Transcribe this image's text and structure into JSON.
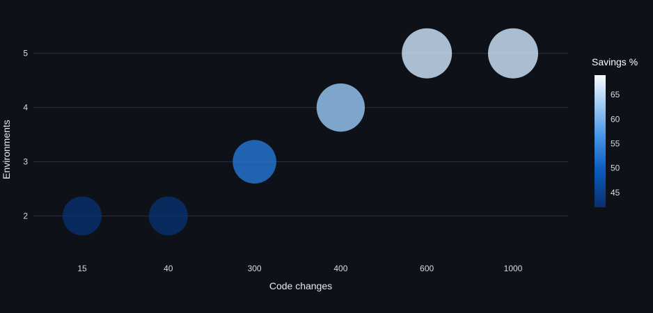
{
  "chart_data": {
    "type": "scatter",
    "x_categories": [
      "15",
      "40",
      "300",
      "400",
      "600",
      "1000"
    ],
    "xlabel": "Code changes",
    "ylabel": "Environments",
    "y_ticks": [
      2,
      3,
      4,
      5
    ],
    "ylim": [
      1.3,
      5.6
    ],
    "points": [
      {
        "x": "15",
        "y": 2,
        "savings": 42
      },
      {
        "x": "40",
        "y": 2,
        "savings": 42
      },
      {
        "x": "300",
        "y": 3,
        "savings": 52
      },
      {
        "x": "400",
        "y": 4,
        "savings": 62
      },
      {
        "x": "600",
        "y": 5,
        "savings": 66
      },
      {
        "x": "1000",
        "y": 5,
        "savings": 66
      }
    ],
    "size_scale": "bubble size tracks savings",
    "colorbar": {
      "title": "Savings %",
      "ticks": [
        45,
        50,
        55,
        60,
        65
      ],
      "range": [
        42,
        69
      ],
      "colorscale": [
        "#08306b",
        "#0b5bbf",
        "#4292e6",
        "#9ac8f4",
        "#f7fbff"
      ]
    },
    "grid": true,
    "background": "#0e1117"
  }
}
